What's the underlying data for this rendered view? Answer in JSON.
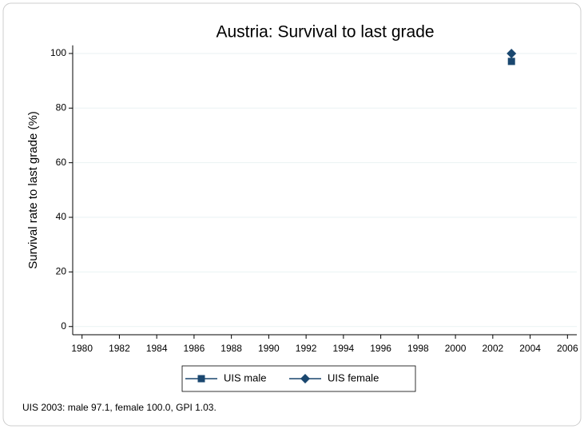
{
  "chart_data": {
    "type": "line",
    "title": "Austria: Survival to last grade",
    "y_label": "Survival rate to last grade (%)",
    "x": [
      2003
    ],
    "series": [
      {
        "name": "UIS male",
        "color": "#1a476f",
        "marker": "square",
        "values": [
          97.1
        ]
      },
      {
        "name": "UIS female",
        "color": "#1a476f",
        "marker": "diamond",
        "values": [
          100
        ]
      }
    ],
    "xlim": [
      1979.5,
      2006.5
    ],
    "xticks": [
      1980,
      1982,
      1984,
      1986,
      1988,
      1990,
      1992,
      1994,
      1996,
      1998,
      2000,
      2002,
      2004,
      2006
    ],
    "ylim": [
      -3,
      103
    ],
    "yticks": [
      0,
      20,
      40,
      60,
      80,
      100
    ],
    "grid": true,
    "legend": "bottom",
    "note": "UIS 2003: male 97.1, female 100.0, GPI 1.03."
  }
}
